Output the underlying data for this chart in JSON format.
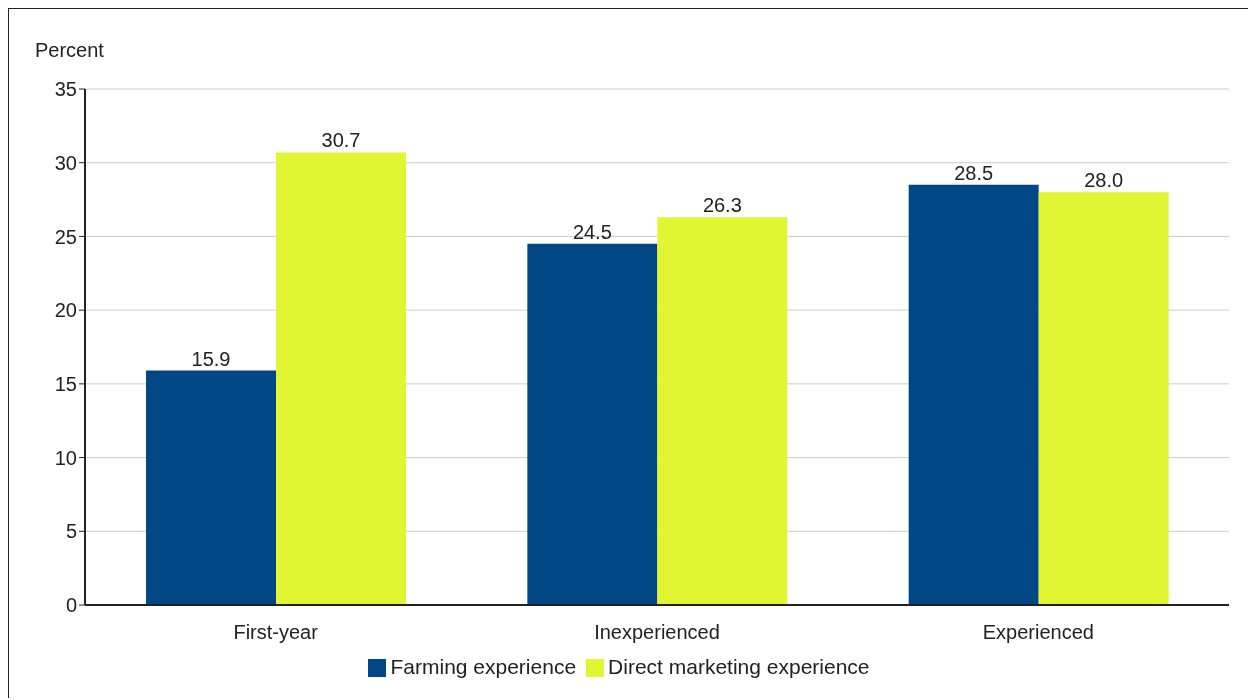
{
  "chart_data": {
    "type": "bar",
    "ylabel": "Percent",
    "categories": [
      "First-year",
      "Inexperienced",
      "Experienced"
    ],
    "series": [
      {
        "name": "Farming experience",
        "color": "#004785",
        "values": [
          15.9,
          24.5,
          28.5
        ],
        "value_labels": [
          "15.9",
          "24.5",
          "28.5"
        ]
      },
      {
        "name": "Direct marketing experience",
        "color": "#e1f532",
        "values": [
          30.7,
          26.3,
          28.0
        ],
        "value_labels": [
          "30.7",
          "26.3",
          "28.0"
        ]
      }
    ],
    "ylim": [
      0,
      35
    ],
    "yticks": [
      0,
      5,
      10,
      15,
      20,
      25,
      30,
      35
    ],
    "grid": "y",
    "legend": "bottom"
  }
}
